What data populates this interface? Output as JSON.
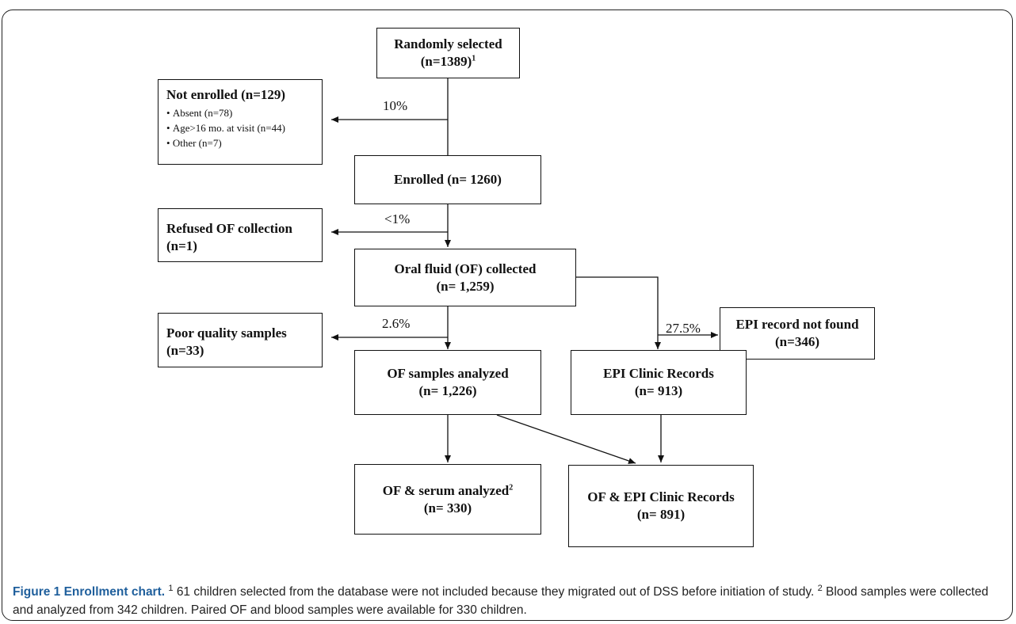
{
  "boxes": {
    "randomly_selected": {
      "line1": "Randomly selected",
      "line2": "(n=1389)",
      "sup": "1"
    },
    "not_enrolled": {
      "title": "Not enrolled (n=129)",
      "items": [
        "Absent (n=78)",
        "Age>16 mo. at visit (n=44)",
        "Other (n=7)"
      ]
    },
    "enrolled": {
      "line1": "Enrolled (n= 1260)"
    },
    "refused": {
      "line1": "Refused OF collection",
      "line2": "(n=1)"
    },
    "of_collected": {
      "line1": "Oral fluid (OF) collected",
      "line2": "(n= 1,259)"
    },
    "poor_quality": {
      "line1": "Poor quality samples",
      "line2": "(n=33)"
    },
    "epi_not_found": {
      "line1": "EPI record not found",
      "line2": "(n=346)"
    },
    "of_analyzed": {
      "line1": "OF samples analyzed",
      "line2": "(n= 1,226)"
    },
    "epi_clinic": {
      "line1": "EPI Clinic Records",
      "line2": "(n= 913)"
    },
    "of_serum": {
      "line1": "OF & serum analyzed",
      "sup": "2",
      "line2": "(n= 330)"
    },
    "of_epi": {
      "line1": "OF & EPI Clinic Records",
      "line2": "(n= 891)"
    }
  },
  "percents": {
    "not_enrolled": "10%",
    "refused": "<1%",
    "poor_quality": "2.6%",
    "epi_not_found": "27.5%"
  },
  "caption": {
    "label": "Figure 1 Enrollment chart.",
    "note1_sup": "1",
    "note1": "61 children selected from the database were not included because they migrated out of DSS before initiation of study.",
    "note2_sup": "2",
    "note2": "Blood samples were collected and analyzed from 342 children. Paired OF and blood samples were available for 330 children."
  }
}
